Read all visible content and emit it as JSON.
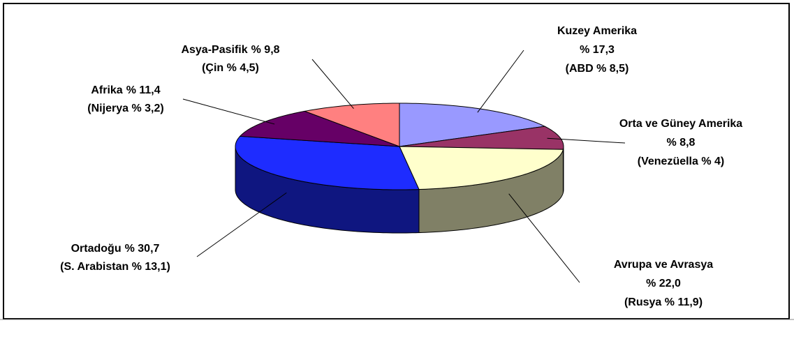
{
  "chart_data": {
    "type": "pie",
    "three_d": true,
    "categories": [
      "Kuzey Amerika",
      "Orta ve Güney Amerika",
      "Avrupa ve Avrasya",
      "Ortadoğu",
      "Afrika",
      "Asya-Pasifik"
    ],
    "values": [
      17.3,
      8.8,
      22.0,
      30.7,
      11.4,
      9.8
    ],
    "value_labels": [
      "% 17,3",
      "% 8,8",
      "% 22,0",
      "% 30,7",
      "% 11,4",
      "% 9,8"
    ],
    "annotations": [
      "(ABD % 8,5)",
      "(Venezüella % 4)",
      "(Rusya % 11,9)",
      "(S. Arabistan % 13,1)",
      "(Nijerya % 3,2)",
      "(Çin % 4,5)"
    ],
    "colors": [
      "#9999ff",
      "#993366",
      "#ffffcc",
      "#1e2cff",
      "#660066",
      "#ff8080"
    ]
  }
}
